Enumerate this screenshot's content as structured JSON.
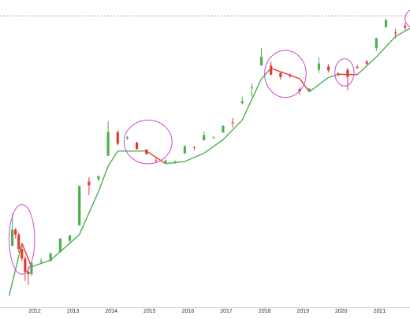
{
  "chart_data": {
    "type": "candlestick",
    "scale": "log",
    "grid": false,
    "legend": "none",
    "x_ticks": [
      "2012",
      "2013",
      "2014",
      "2015",
      "2016",
      "2017",
      "2018",
      "2019",
      "2020",
      "2021"
    ],
    "x_range": [
      "2011-05",
      "2021-12"
    ],
    "y_range": [
      1,
      100000
    ],
    "reference_line": {
      "value": 69000,
      "style": "dashed",
      "color": "#e88aa6"
    },
    "candles": [
      {
        "date": "2011-06",
        "open": 9,
        "high": 32,
        "low": 10,
        "close": 17
      },
      {
        "date": "2011-07",
        "open": 17,
        "high": 18,
        "low": 12,
        "close": 14
      },
      {
        "date": "2011-08",
        "open": 14,
        "high": 15,
        "low": 7,
        "close": 8
      },
      {
        "date": "2011-09",
        "open": 8,
        "high": 9,
        "low": 5,
        "close": 5.5
      },
      {
        "date": "2011-10",
        "open": 5.5,
        "high": 6,
        "low": 2.3,
        "close": 3.3
      },
      {
        "date": "2011-11",
        "open": 3.3,
        "high": 4,
        "low": 2,
        "close": 3
      },
      {
        "date": "2011-12",
        "open": 3,
        "high": 4.8,
        "low": 2.8,
        "close": 4.7
      },
      {
        "date": "2012-03",
        "open": 5,
        "high": 5.5,
        "low": 4.5,
        "close": 5
      },
      {
        "date": "2012-06",
        "open": 5,
        "high": 7,
        "low": 5,
        "close": 6.7
      },
      {
        "date": "2012-09",
        "open": 7,
        "high": 12,
        "low": 7,
        "close": 12
      },
      {
        "date": "2012-12",
        "open": 11,
        "high": 14,
        "low": 10,
        "close": 13.5
      },
      {
        "date": "2013-03",
        "open": 20,
        "high": 95,
        "low": 20,
        "close": 92
      },
      {
        "date": "2013-06",
        "open": 110,
        "high": 130,
        "low": 65,
        "close": 95
      },
      {
        "date": "2013-09",
        "open": 120,
        "high": 140,
        "low": 110,
        "close": 135
      },
      {
        "date": "2013-12",
        "open": 300,
        "high": 1150,
        "low": 300,
        "close": 750
      },
      {
        "date": "2014-03",
        "open": 750,
        "high": 800,
        "low": 450,
        "close": 480
      },
      {
        "date": "2014-06",
        "open": 600,
        "high": 650,
        "low": 550,
        "close": 620
      },
      {
        "date": "2014-09",
        "open": 500,
        "high": 520,
        "low": 380,
        "close": 390
      },
      {
        "date": "2014-12",
        "open": 380,
        "high": 390,
        "low": 310,
        "close": 320
      },
      {
        "date": "2015-03",
        "open": 250,
        "high": 280,
        "low": 230,
        "close": 245
      },
      {
        "date": "2015-06",
        "open": 230,
        "high": 260,
        "low": 220,
        "close": 250
      },
      {
        "date": "2015-09",
        "open": 230,
        "high": 250,
        "low": 220,
        "close": 240
      },
      {
        "date": "2015-12",
        "open": 330,
        "high": 460,
        "low": 320,
        "close": 430
      },
      {
        "date": "2016-03",
        "open": 420,
        "high": 430,
        "low": 370,
        "close": 416
      },
      {
        "date": "2016-06",
        "open": 550,
        "high": 770,
        "low": 540,
        "close": 670
      },
      {
        "date": "2016-09",
        "open": 600,
        "high": 640,
        "low": 590,
        "close": 610
      },
      {
        "date": "2016-12",
        "open": 740,
        "high": 980,
        "low": 730,
        "close": 960
      },
      {
        "date": "2017-03",
        "open": 1100,
        "high": 1300,
        "low": 900,
        "close": 1080
      },
      {
        "date": "2017-06",
        "open": 2300,
        "high": 3000,
        "low": 2200,
        "close": 2500
      },
      {
        "date": "2017-09",
        "open": 4300,
        "high": 5000,
        "low": 3000,
        "close": 4300
      },
      {
        "date": "2017-12",
        "open": 10000,
        "high": 19700,
        "low": 10000,
        "close": 14000
      },
      {
        "date": "2018-03",
        "open": 10000,
        "high": 11700,
        "low": 6900,
        "close": 7000
      },
      {
        "date": "2018-06",
        "open": 7500,
        "high": 7700,
        "low": 5800,
        "close": 6400
      },
      {
        "date": "2018-09",
        "open": 7000,
        "high": 7400,
        "low": 6200,
        "close": 6600
      },
      {
        "date": "2018-12",
        "open": 4000,
        "high": 4300,
        "low": 3200,
        "close": 3700
      },
      {
        "date": "2019-03",
        "open": 3800,
        "high": 4100,
        "low": 3700,
        "close": 4100
      },
      {
        "date": "2019-06",
        "open": 8500,
        "high": 13800,
        "low": 7500,
        "close": 10800
      },
      {
        "date": "2019-09",
        "open": 9600,
        "high": 10500,
        "low": 7700,
        "close": 8300
      },
      {
        "date": "2019-12",
        "open": 7400,
        "high": 7700,
        "low": 6500,
        "close": 7200
      },
      {
        "date": "2020-03",
        "open": 8500,
        "high": 9100,
        "low": 3800,
        "close": 6400
      },
      {
        "date": "2020-06",
        "open": 9500,
        "high": 10300,
        "low": 8900,
        "close": 9100
      },
      {
        "date": "2020-09",
        "open": 11600,
        "high": 12400,
        "low": 10000,
        "close": 10800
      },
      {
        "date": "2020-12",
        "open": 19700,
        "high": 29300,
        "low": 17600,
        "close": 29000
      },
      {
        "date": "2021-03",
        "open": 45000,
        "high": 61800,
        "low": 43000,
        "close": 58800
      },
      {
        "date": "2021-06",
        "open": 36000,
        "high": 41300,
        "low": 28800,
        "close": 35000
      },
      {
        "date": "2021-09",
        "open": 47000,
        "high": 52900,
        "low": 39600,
        "close": 43800
      },
      {
        "date": "2021-11",
        "open": 61300,
        "high": 69000,
        "low": 53200,
        "close": 57000
      }
    ],
    "trailing_line": [
      {
        "date": "2011-05",
        "value": 1.3
      },
      {
        "date": "2011-09",
        "value": 10
      },
      {
        "date": "2011-12",
        "value": 4
      },
      {
        "date": "2012-06",
        "value": 5.2
      },
      {
        "date": "2012-12",
        "value": 10
      },
      {
        "date": "2013-03",
        "value": 14
      },
      {
        "date": "2013-09",
        "value": 75
      },
      {
        "date": "2013-12",
        "value": 200
      },
      {
        "date": "2014-03",
        "value": 360
      },
      {
        "date": "2014-12",
        "value": 360
      },
      {
        "date": "2015-06",
        "value": 220
      },
      {
        "date": "2015-12",
        "value": 240
      },
      {
        "date": "2016-06",
        "value": 330
      },
      {
        "date": "2016-12",
        "value": 560
      },
      {
        "date": "2017-06",
        "value": 1200
      },
      {
        "date": "2017-12",
        "value": 6000
      },
      {
        "date": "2018-03",
        "value": 9000
      },
      {
        "date": "2018-12",
        "value": 6000
      },
      {
        "date": "2019-03",
        "value": 3600
      },
      {
        "date": "2019-09",
        "value": 6300
      },
      {
        "date": "2019-12",
        "value": 7100
      },
      {
        "date": "2020-06",
        "value": 7000
      },
      {
        "date": "2020-12",
        "value": 14000
      },
      {
        "date": "2021-06",
        "value": 31000
      },
      {
        "date": "2021-12",
        "value": 47000
      }
    ],
    "highlight_circles": [
      {
        "start": "2011-05",
        "end": "2012-01",
        "y_low": 3,
        "y_high": 45
      },
      {
        "start": "2014-05",
        "end": "2015-08",
        "y_low": 220,
        "y_high": 1200
      },
      {
        "start": "2018-01",
        "end": "2019-02",
        "y_low": 2900,
        "y_high": 18000
      },
      {
        "start": "2019-11",
        "end": "2020-05",
        "y_low": 4500,
        "y_high": 13000
      },
      {
        "start": "2021-09",
        "end": "2022-03",
        "y_low": 43000,
        "y_high": 90000
      }
    ],
    "colors": {
      "up": "#4caf50",
      "down": "#e53935",
      "trail_up": "#4caf50",
      "trail_down": "#e53935",
      "circle": "#d046d0",
      "ref_line": "#e88aa6",
      "axis_text": "#333333"
    }
  }
}
